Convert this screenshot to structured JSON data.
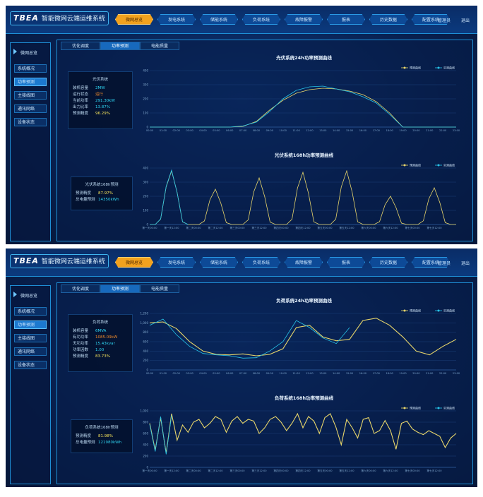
{
  "header": {
    "logo": "TBEA",
    "title": "智能微网云端运维系统",
    "user": "管理员",
    "logout": "退出"
  },
  "nav": {
    "items": [
      "微网总览",
      "发电系统",
      "储能系统",
      "负荷系统",
      "故障报警",
      "报表",
      "历史数据",
      "配置系统"
    ],
    "active": 0
  },
  "sidebar": {
    "title": "微网总览",
    "items": [
      "系统概况",
      "功率预测",
      "主接线图",
      "通讯网络",
      "设备状态"
    ],
    "active": 1
  },
  "tabs": {
    "items": [
      "优化调度",
      "功率预测",
      "电能质量"
    ],
    "active": 1
  },
  "panels": [
    {
      "info": {
        "title": "光伏系统",
        "rows": [
          {
            "label": "装机容量",
            "value": "2MW",
            "color": "#2fd3f0"
          },
          {
            "label": "运行状态",
            "value": "运行",
            "color": "#f08a2a"
          },
          {
            "label": "当前功率",
            "value": "291.30kW",
            "color": "#2fd3f0"
          },
          {
            "label": "出力比率",
            "value": "13.87%",
            "color": "#2fd3f0"
          },
          {
            "label": "预测精度",
            "value": "96.29%",
            "color": "#f2e05a"
          }
        ]
      },
      "forecast": {
        "title": "光伏系统168h预测",
        "rows": [
          {
            "label": "预测精度",
            "value": "87.97%",
            "color": "#f2e05a"
          },
          {
            "label": "总电量预测",
            "value": "14350kWh",
            "color": "#2fd3f0"
          }
        ]
      },
      "charts": [
        {
          "type": "line",
          "title": "光伏系统24h功率预测曲线",
          "ylim": [
            0,
            400
          ],
          "yticks": [
            0,
            100,
            200,
            300,
            400
          ],
          "x_labels": [
            "00:00",
            "01:00",
            "02:00",
            "03:00",
            "04:00",
            "05:00",
            "06:00",
            "07:00",
            "08:00",
            "09:00",
            "10:00",
            "11:00",
            "12:00",
            "13:00",
            "14:00",
            "15:00",
            "16:00",
            "17:00",
            "18:00",
            "19:00",
            "20:00",
            "21:00",
            "22:00",
            "23:00"
          ],
          "series": [
            {
              "name": "预测曲线",
              "color": "#e8d66a",
              "values": [
                0,
                0,
                0,
                0,
                0,
                0,
                0,
                5,
                40,
                120,
                190,
                240,
                265,
                275,
                270,
                255,
                230,
                180,
                100,
                0,
                0,
                0,
                0,
                0
              ]
            },
            {
              "name": "实测曲线",
              "color": "#27c4e8",
              "values": [
                0,
                0,
                0,
                0,
                0,
                0,
                0,
                8,
                35,
                110,
                200,
                260,
                285,
                290,
                270,
                250,
                215,
                170,
                90,
                0,
                0,
                0,
                0,
                0
              ]
            }
          ]
        },
        {
          "type": "line",
          "title": "光伏系统168h功率预测曲线",
          "ylim": [
            0,
            400
          ],
          "yticks": [
            0,
            100,
            200,
            300,
            400
          ],
          "x_labels": [
            "第一天00:00",
            "第一天12:00",
            "第二天00:00",
            "第二天12:00",
            "第三天00:00",
            "第三天12:00",
            "第四天00:00",
            "第四天12:00",
            "第五天00:00",
            "第五天12:00",
            "第六天00:00",
            "第六天12:00",
            "第七天00:00",
            "第七天12:00"
          ],
          "series": [
            {
              "name": "预测曲线",
              "color": "#e8d66a",
              "values": [
                0,
                0,
                38,
                266,
                380,
                228,
                19,
                0,
                0,
                0,
                25,
                175,
                250,
                150,
                13,
                0,
                0,
                0,
                33,
                231,
                330,
                198,
                17,
                0,
                0,
                0,
                37,
                259,
                370,
                222,
                19,
                0,
                0,
                0,
                38,
                266,
                380,
                228,
                19,
                0,
                0,
                0,
                20,
                140,
                200,
                120,
                10,
                0,
                0,
                0,
                26,
                182,
                260,
                156,
                13,
                0,
                0
              ]
            },
            {
              "name": "实测曲线",
              "color": "#27c4e8",
              "values": [
                0,
                0,
                40,
                270,
                385,
                225,
                20,
                0,
                null,
                null,
                null,
                null,
                null,
                null,
                null,
                null,
                null,
                null,
                null,
                null,
                null,
                null,
                null,
                null,
                null,
                null,
                null,
                null,
                null,
                null,
                null,
                null,
                null,
                null,
                null,
                null,
                null,
                null,
                null,
                null,
                null,
                null,
                null,
                null,
                null,
                null,
                null,
                null,
                null,
                null,
                null,
                null,
                null,
                null,
                null,
                null,
                null
              ]
            }
          ]
        }
      ]
    },
    {
      "info": {
        "title": "负荷系统",
        "rows": [
          {
            "label": "装机容量",
            "value": "6MVA",
            "color": "#2fd3f0"
          },
          {
            "label": "有功功率",
            "value": "1085.09kW",
            "color": "#f08a2a"
          },
          {
            "label": "无功功率",
            "value": "15.43kvar",
            "color": "#2fd3f0"
          },
          {
            "label": "功率因数",
            "value": "1.00",
            "color": "#2fd3f0"
          },
          {
            "label": "预测精度",
            "value": "83.73%",
            "color": "#f2e05a"
          }
        ]
      },
      "forecast": {
        "title": "负荷系统168h预测",
        "rows": [
          {
            "label": "预测精度",
            "value": "81.98%",
            "color": "#f2e05a"
          },
          {
            "label": "总电量预测",
            "value": "121980kWh",
            "color": "#2fd3f0"
          }
        ]
      },
      "charts": [
        {
          "type": "line",
          "title": "负荷系统24h功率预测曲线",
          "ylim": [
            0,
            1200
          ],
          "yticks": [
            0,
            200,
            400,
            600,
            800,
            {
              "value": 1000,
              "label": "1,000"
            },
            {
              "value": 1200,
              "label": "1,200"
            }
          ],
          "x_labels": [
            "00:00",
            "01:00",
            "02:00",
            "03:00",
            "04:00",
            "05:00",
            "06:00",
            "07:00",
            "08:00",
            "09:00",
            "10:00",
            "11:00",
            "12:00",
            "13:00",
            "14:00",
            "15:00",
            "16:00",
            "17:00",
            "18:00",
            "19:00",
            "20:00",
            "21:00",
            "22:00",
            "23:00"
          ],
          "series": [
            {
              "name": "预测曲线",
              "color": "#e8d66a",
              "values": [
                1000,
                1020,
                880,
                600,
                400,
                330,
                320,
                340,
                300,
                330,
                450,
                900,
                950,
                700,
                620,
                650,
                1050,
                1100,
                950,
                700,
                400,
                320,
                500,
                650
              ]
            },
            {
              "name": "实测曲线",
              "color": "#27c4e8",
              "values": [
                950,
                1080,
                750,
                500,
                350,
                320,
                300,
                250,
                260,
                400,
                600,
                1050,
                900,
                680,
                560,
                900,
                null,
                null,
                null,
                null,
                null,
                null,
                null,
                null
              ]
            }
          ]
        },
        {
          "type": "line",
          "title": "负荷系统168h功率预测曲线",
          "ylim": [
            0,
            1000
          ],
          "yticks": [
            0,
            200,
            400,
            600,
            800,
            {
              "value": 1000,
              "label": "1,000"
            }
          ],
          "x_labels": [
            "第一天00:00",
            "第一天12:00",
            "第二天00:00",
            "第二天12:00",
            "第三天00:00",
            "第三天12:00",
            "第四天00:00",
            "第四天12:00",
            "第五天00:00",
            "第五天12:00",
            "第六天00:00",
            "第六天12:00",
            "第七天00:00",
            "第七天12:00"
          ],
          "series": [
            {
              "name": "预测曲线",
              "color": "#e8d66a",
              "values": [
                780,
                300,
                880,
                250,
                950,
                480,
                750,
                620,
                800,
                850,
                700,
                780,
                900,
                850,
                620,
                820,
                900,
                780,
                850,
                820,
                600,
                700,
                850,
                900,
                800,
                650,
                780,
                950,
                700,
                900,
                820,
                600,
                880,
                950,
                720,
                400,
                850,
                700,
                520,
                850,
                880,
                600,
                650,
                830,
                650,
                320,
                780,
                820,
                680,
                620,
                580,
                650,
                600,
                550,
                350,
                520,
                600
              ]
            },
            {
              "name": "实测曲线",
              "color": "#27c4e8",
              "values": [
                760,
                280,
                900,
                230,
                920,
                null,
                null,
                null,
                null,
                null,
                null,
                null,
                null,
                null,
                null,
                null,
                null,
                null,
                null,
                null,
                null,
                null,
                null,
                null,
                null,
                null,
                null,
                null,
                null,
                null,
                null,
                null,
                null,
                null,
                null,
                null,
                null,
                null,
                null,
                null,
                null,
                null,
                null,
                null,
                null,
                null,
                null,
                null,
                null,
                null,
                null,
                null,
                null,
                null,
                null,
                null,
                null
              ]
            }
          ]
        }
      ]
    }
  ]
}
